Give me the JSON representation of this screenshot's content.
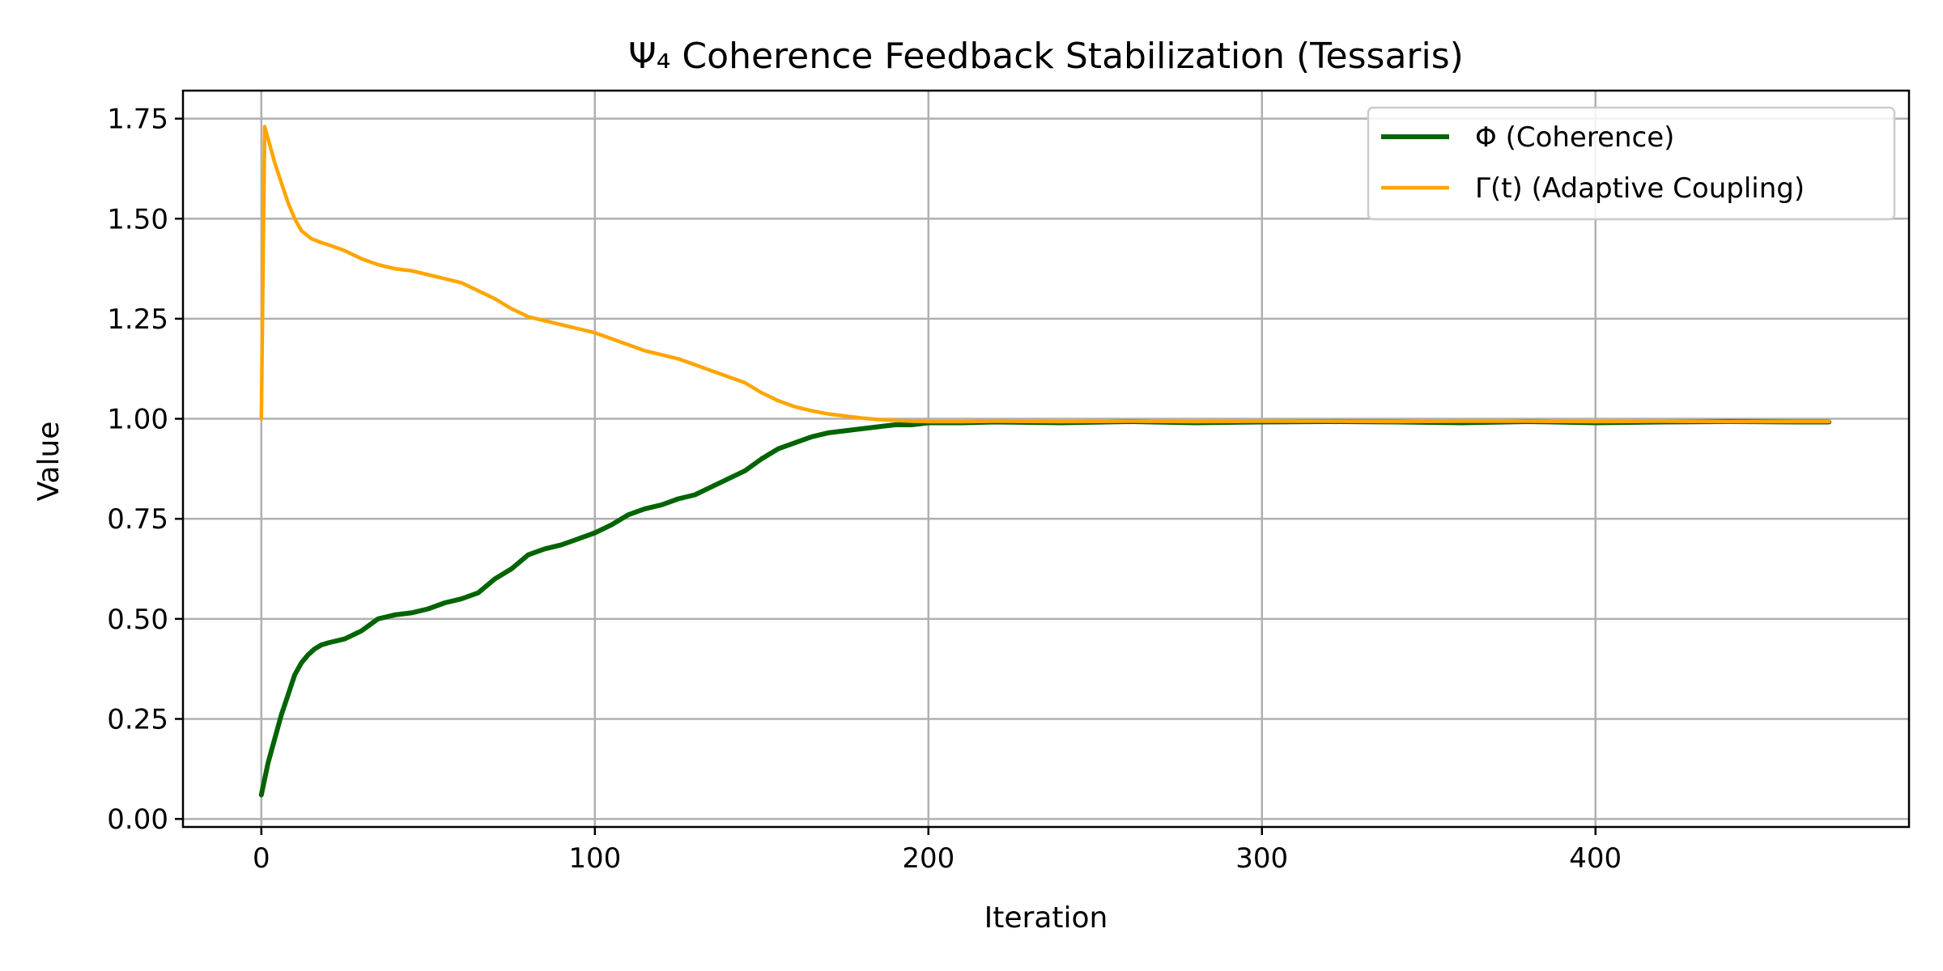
{
  "chart_data": {
    "type": "line",
    "title": "Ψ₄ Coherence Feedback Stabilization (Tessaris)",
    "xlabel": "Iteration",
    "ylabel": "Value",
    "xlim": [
      -23.5,
      494
    ],
    "ylim": [
      -0.02,
      1.82
    ],
    "xticks": [
      0,
      100,
      200,
      300,
      400
    ],
    "yticks": [
      "0.00",
      "0.25",
      "0.50",
      "0.75",
      "1.00",
      "1.25",
      "1.50",
      "1.75"
    ],
    "grid": true,
    "legend_position": "upper right",
    "series": [
      {
        "name": "Φ (Coherence)",
        "color": "#006400",
        "x": [
          0,
          2,
          4,
          6,
          8,
          10,
          12,
          14,
          16,
          18,
          20,
          25,
          30,
          35,
          40,
          45,
          50,
          55,
          60,
          65,
          70,
          75,
          80,
          85,
          90,
          95,
          100,
          105,
          110,
          115,
          120,
          125,
          130,
          135,
          140,
          145,
          150,
          155,
          160,
          165,
          170,
          175,
          180,
          185,
          190,
          195,
          200,
          210,
          220,
          240,
          260,
          280,
          300,
          320,
          340,
          360,
          380,
          400,
          420,
          440,
          460,
          470
        ],
        "y": [
          0.06,
          0.14,
          0.2,
          0.26,
          0.31,
          0.36,
          0.39,
          0.41,
          0.425,
          0.435,
          0.44,
          0.45,
          0.47,
          0.5,
          0.51,
          0.515,
          0.525,
          0.54,
          0.55,
          0.565,
          0.6,
          0.625,
          0.66,
          0.675,
          0.685,
          0.7,
          0.715,
          0.735,
          0.76,
          0.775,
          0.785,
          0.8,
          0.81,
          0.83,
          0.85,
          0.87,
          0.9,
          0.925,
          0.94,
          0.955,
          0.965,
          0.97,
          0.975,
          0.98,
          0.985,
          0.985,
          0.99,
          0.99,
          0.992,
          0.99,
          0.993,
          0.99,
          0.992,
          0.993,
          0.992,
          0.99,
          0.993,
          0.99,
          0.992,
          0.993,
          0.992,
          0.992
        ]
      },
      {
        "name": "Γ(t) (Adaptive Coupling)",
        "color": "#FFA500",
        "x": [
          0,
          1,
          2,
          4,
          6,
          8,
          10,
          12,
          15,
          18,
          20,
          25,
          30,
          35,
          40,
          45,
          50,
          55,
          60,
          65,
          70,
          75,
          80,
          85,
          90,
          95,
          100,
          105,
          110,
          115,
          120,
          125,
          130,
          135,
          140,
          145,
          150,
          155,
          160,
          165,
          170,
          175,
          180,
          185,
          190,
          195,
          200,
          210,
          220,
          240,
          260,
          280,
          300,
          320,
          340,
          360,
          380,
          400,
          420,
          440,
          460,
          470
        ],
        "y": [
          1.0,
          1.73,
          1.7,
          1.64,
          1.59,
          1.54,
          1.5,
          1.47,
          1.45,
          1.44,
          1.435,
          1.42,
          1.4,
          1.385,
          1.375,
          1.37,
          1.36,
          1.35,
          1.34,
          1.32,
          1.3,
          1.275,
          1.255,
          1.245,
          1.235,
          1.225,
          1.215,
          1.2,
          1.185,
          1.17,
          1.16,
          1.15,
          1.135,
          1.12,
          1.105,
          1.09,
          1.065,
          1.045,
          1.03,
          1.02,
          1.012,
          1.007,
          1.002,
          0.998,
          0.996,
          0.994,
          0.993,
          0.993,
          0.994,
          0.993,
          0.994,
          0.993,
          0.994,
          0.994,
          0.993,
          0.994,
          0.994,
          0.993,
          0.994,
          0.993,
          0.993,
          0.993
        ]
      }
    ]
  }
}
